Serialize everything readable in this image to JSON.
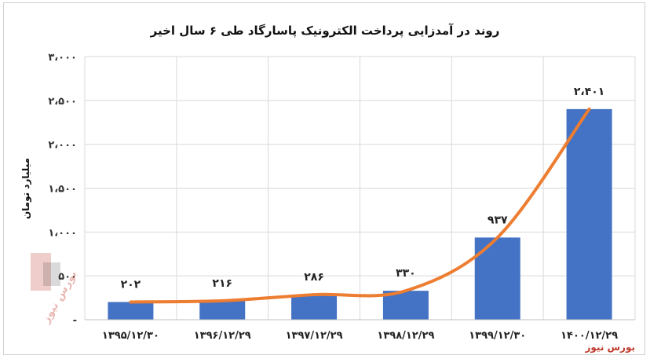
{
  "chart_data": {
    "type": "bar",
    "title": "روند در آمدزایی پرداخت الکترونیک پاسارگاد طی ۶ سال اخیر",
    "ylabel": "میلیارد تومان",
    "categories": [
      "۱۳۹۵/۱۲/۳۰",
      "۱۳۹۶/۱۲/۲۹",
      "۱۳۹۷/۱۲/۲۹",
      "۱۳۹۸/۱۲/۲۹",
      "۱۳۹۹/۱۲/۳۰",
      "۱۴۰۰/۱۲/۲۹"
    ],
    "values": [
      202,
      216,
      286,
      330,
      937,
      2401
    ],
    "value_labels": [
      "۲۰۲",
      "۲۱۶",
      "۲۸۶",
      "۳۳۰",
      "۹۳۷",
      "۲،۴۰۱"
    ],
    "ylim": [
      0,
      3000
    ],
    "yticks": [
      0,
      500,
      1000,
      1500,
      2000,
      2500,
      3000
    ],
    "ytick_labels": [
      "-",
      "۵۰۰",
      "۱،۰۰۰",
      "۱،۵۰۰",
      "۲،۰۰۰",
      "۲،۵۰۰",
      "۳،۰۰۰"
    ],
    "overlay": "line",
    "grid": true,
    "colors": {
      "bar": "#4472C4",
      "line": "#ED7D31",
      "grid": "#d9d9d9"
    }
  },
  "source": "بورس نیوز",
  "watermark": "بورس نیوز"
}
